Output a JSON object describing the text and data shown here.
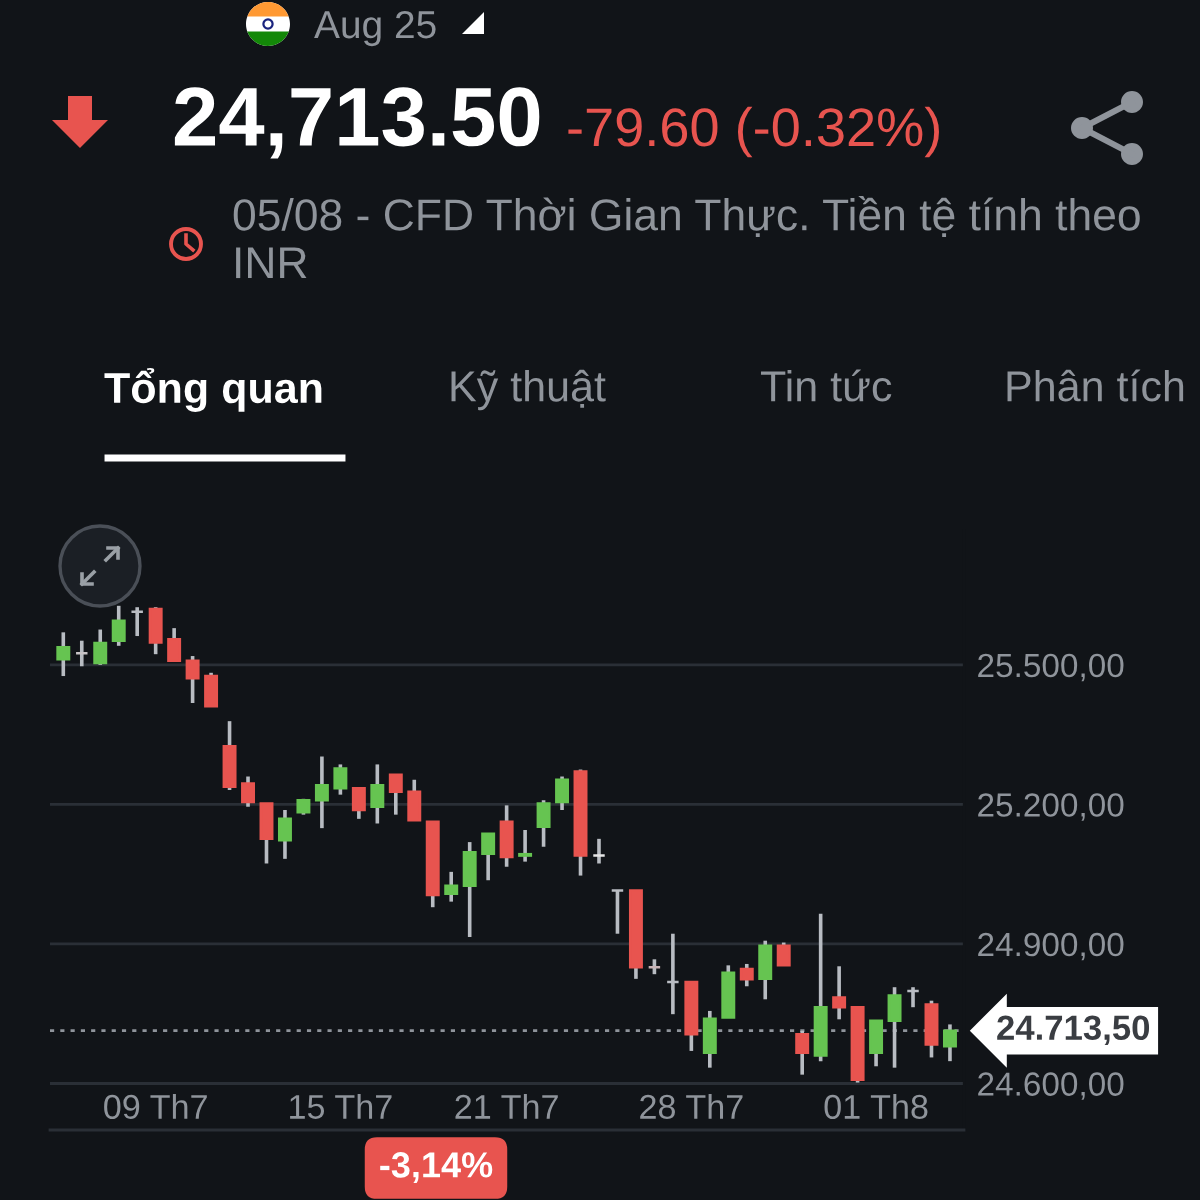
{
  "chart_data": {
    "type": "candlestick",
    "title": "Aug 25",
    "subtitle": "05/08 - CFD Thời Gian Thực. Tiền tệ tính theo INR",
    "annotations": [
      "24,713.50",
      "-79.60 (-0.32%)",
      "Tổng quan",
      "Kỹ thuật",
      "Tin tức",
      "Phân tích",
      "-3,14%"
    ],
    "categories": [
      null,
      null,
      null,
      null,
      null,
      "09 Th7",
      null,
      null,
      null,
      null,
      null,
      null,
      null,
      null,
      null,
      "15 Th7",
      null,
      null,
      null,
      null,
      null,
      null,
      null,
      null,
      "21 Th7",
      null,
      null,
      null,
      null,
      null,
      null,
      null,
      null,
      null,
      "28 Th7",
      null,
      null,
      null,
      null,
      null,
      null,
      null,
      null,
      null,
      "01 Th8",
      null,
      null,
      null,
      null
    ],
    "ohlc": [
      [
        25512,
        25570,
        25476,
        25538
      ],
      [
        25525,
        25552,
        25497,
        25525
      ],
      [
        25504,
        25576,
        25500,
        25547
      ],
      [
        25552,
        25627,
        25541,
        25595
      ],
      [
        25614,
        25624,
        25562,
        25614
      ],
      [
        25620,
        25624,
        25523,
        25548
      ],
      [
        25555,
        25579,
        25509,
        25509
      ],
      [
        25509,
        25519,
        25418,
        25471
      ],
      [
        25476,
        25483,
        25411,
        25411
      ],
      [
        25325,
        25379,
        25231,
        25238
      ],
      [
        25245,
        25260,
        25195,
        25205
      ],
      [
        25202,
        25202,
        25073,
        25126
      ],
      [
        25123,
        25188,
        25083,
        25169
      ],
      [
        25183,
        25212,
        25178,
        25209
      ],
      [
        25209,
        25303,
        25149,
        25241
      ],
      [
        25235,
        25286,
        25221,
        25277
      ],
      [
        25235,
        25235,
        25169,
        25188
      ],
      [
        25195,
        25286,
        25159,
        25241
      ],
      [
        25264,
        25264,
        25178,
        25227
      ],
      [
        25227,
        25253,
        25166,
        25166
      ],
      [
        25163,
        25163,
        24979,
        25005
      ],
      [
        25008,
        25055,
        24991,
        25025
      ],
      [
        25025,
        25119,
        24915,
        25097
      ],
      [
        25094,
        25137,
        25037,
        25137
      ],
      [
        25163,
        25198,
        25066,
        25087
      ],
      [
        25090,
        25145,
        25077,
        25093
      ],
      [
        25152,
        25209,
        25109,
        25202
      ],
      [
        25205,
        25260,
        25188,
        25253
      ],
      [
        25271,
        25275,
        25047,
        25090
      ],
      [
        25090,
        25126,
        25073,
        25090
      ],
      [
        25015,
        25015,
        24922,
        25015
      ],
      [
        25015,
        25015,
        24825,
        24850
      ],
      [
        24850,
        24867,
        24835,
        24850
      ],
      [
        24818,
        24922,
        24749,
        24818
      ],
      [
        24818,
        24818,
        24670,
        24706
      ],
      [
        24666,
        24756,
        24634,
        24739
      ],
      [
        24742,
        24854,
        24742,
        24838
      ],
      [
        24846,
        24857,
        24809,
        24824
      ],
      [
        24825,
        24907,
        24781,
        24896
      ],
      [
        24896,
        24903,
        24854,
        24854
      ],
      [
        24706,
        24713,
        24619,
        24666
      ],
      [
        24660,
        24965,
        24648,
        24764
      ],
      [
        24785,
        24852,
        24738,
        24764
      ],
      [
        24764,
        24764,
        24602,
        24608
      ],
      [
        24666,
        24735,
        24637,
        24735
      ],
      [
        24735,
        24807,
        24634,
        24789
      ],
      [
        24799,
        24807,
        24764,
        24799
      ],
      [
        24770,
        24778,
        24656,
        24684
      ],
      [
        24680,
        24727,
        24648,
        24713.5
      ]
    ],
    "colors": [
      "#66c451",
      "#c8c3c6",
      "#66c451",
      "#66c451",
      "#b9bcc2",
      "#e8544f",
      "#e8544f",
      "#e8544f",
      "#e8544f",
      "#e8544f",
      "#e8544f",
      "#e8544f",
      "#66c451",
      "#66c451",
      "#66c451",
      "#66c451",
      "#e8544f",
      "#66c451",
      "#e8544f",
      "#e8544f",
      "#e8544f",
      "#66c451",
      "#66c451",
      "#66c451",
      "#e8544f",
      "#66c451",
      "#66c451",
      "#66c451",
      "#e8544f",
      "#e6e6e6",
      "#b9bcc2",
      "#e8544f",
      "#c8b3b6",
      "#b9bcc2",
      "#e8544f",
      "#66c451",
      "#66c451",
      "#e8544f",
      "#66c451",
      "#e8544f",
      "#e8544f",
      "#66c451",
      "#e8544f",
      "#e8544f",
      "#66c451",
      "#66c451",
      "#b9bcc2",
      "#e8544f",
      "#66c451"
    ],
    "ylim": [
      24500,
      25790
    ],
    "yticks": [
      {
        "value": 24600,
        "label": "24.600,00"
      },
      {
        "value": 24900,
        "label": "24.900,00"
      },
      {
        "value": 25200,
        "label": "25.200,00"
      },
      {
        "value": 25500,
        "label": "25.500,00"
      }
    ],
    "grid": "y",
    "ref_lines": [
      {
        "axis": "y",
        "value": 24713.5,
        "label": "24.713,50",
        "color": "#8f949b",
        "line_style": "dotted"
      }
    ]
  }
}
